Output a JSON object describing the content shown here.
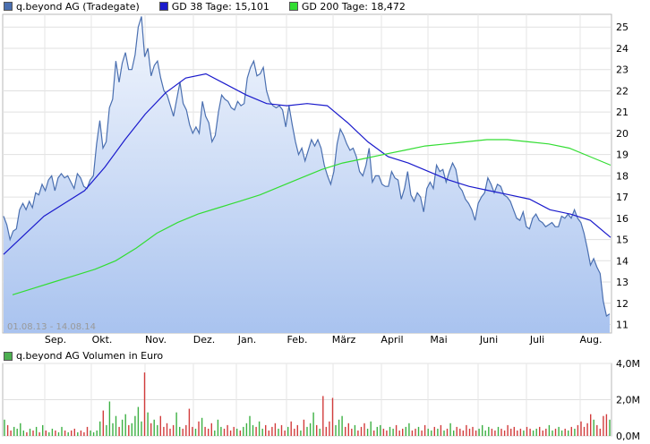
{
  "legend": {
    "price": {
      "label": "q.beyond AG (Tradegate)",
      "color": "#4a6fb0"
    },
    "gd38": {
      "label": "GD 38 Tage: 15,101",
      "color": "#1a1acc"
    },
    "gd200": {
      "label": "GD 200 Tage: 18,472",
      "color": "#33dd33"
    }
  },
  "volume_title": "q.beyond AG Volumen in Euro",
  "date_range": "01.08.13 - 14.08.14",
  "chart_data": [
    {
      "type": "line",
      "title": "",
      "x_start": "01.08.13",
      "x_end": "14.08.14",
      "x_tick_labels": [
        "Sep.",
        "Okt.",
        "Nov.",
        "Dez.",
        "Jan.",
        "Feb.",
        "März",
        "April",
        "Mai",
        "Juni",
        "Juli",
        "Aug."
      ],
      "y_tick_labels": [
        "11",
        "12",
        "13",
        "14",
        "15",
        "16",
        "17",
        "18",
        "19",
        "20",
        "21",
        "22",
        "23",
        "24",
        "25"
      ],
      "ylim": [
        10.6,
        25.6
      ],
      "grid": true,
      "legend_position": "top",
      "series": [
        {
          "name": "q.beyond AG (Tradegate)",
          "color": "#4a6fb0",
          "fill": "area-gradient",
          "values": [
            16.1,
            15.7,
            15.0,
            15.4,
            15.5,
            16.4,
            16.7,
            16.4,
            16.8,
            16.5,
            17.2,
            17.1,
            17.6,
            17.3,
            17.8,
            18.0,
            17.3,
            17.9,
            18.1,
            17.9,
            18.0,
            17.7,
            17.4,
            18.1,
            17.9,
            17.5,
            17.4,
            17.8,
            18.0,
            19.5,
            20.6,
            19.3,
            19.6,
            21.2,
            21.6,
            23.4,
            22.4,
            23.3,
            23.8,
            23.0,
            23.0,
            23.7,
            25.0,
            25.5,
            23.6,
            24.0,
            22.7,
            23.2,
            23.4,
            22.6,
            22.0,
            21.8,
            21.3,
            20.8,
            21.6,
            22.4,
            21.4,
            21.1,
            20.4,
            20.0,
            20.3,
            20.0,
            21.5,
            20.8,
            20.5,
            19.6,
            19.9,
            21.0,
            21.8,
            21.6,
            21.5,
            21.2,
            21.1,
            21.5,
            21.3,
            21.4,
            22.6,
            23.1,
            23.4,
            22.7,
            22.8,
            23.1,
            22.0,
            21.5,
            21.3,
            21.2,
            21.3,
            21.1,
            20.3,
            21.3,
            20.4,
            19.6,
            19.0,
            19.3,
            18.7,
            19.2,
            19.7,
            19.4,
            19.7,
            19.3,
            18.5,
            18.0,
            17.6,
            18.2,
            19.5,
            20.2,
            19.9,
            19.5,
            19.2,
            19.3,
            18.9,
            18.2,
            18.0,
            18.5,
            19.3,
            17.7,
            18.0,
            18.0,
            17.6,
            17.5,
            17.5,
            18.2,
            17.9,
            17.8,
            16.9,
            17.4,
            18.2,
            17.1,
            16.8,
            17.2,
            17.0,
            16.3,
            17.4,
            17.7,
            17.4,
            18.5,
            18.2,
            18.3,
            17.7,
            18.2,
            18.6,
            18.3,
            17.5,
            17.3,
            16.9,
            16.7,
            16.4,
            15.9,
            16.7,
            17.0,
            17.2,
            17.9,
            17.6,
            17.2,
            17.6,
            17.5,
            17.1,
            17.0,
            16.8,
            16.4,
            16.0,
            15.9,
            16.3,
            15.6,
            15.5,
            16.0,
            16.2,
            15.9,
            15.8,
            15.6,
            15.7,
            15.8,
            15.6,
            15.6,
            16.1,
            16.0,
            16.2,
            16.0,
            16.4,
            16.0,
            15.8,
            15.3,
            14.6,
            13.8,
            14.1,
            13.7,
            13.4,
            12.1,
            11.4,
            11.5
          ]
        },
        {
          "name": "GD 38 Tage: 15,101",
          "color": "#1a1acc",
          "values": [
            14.3,
            15.2,
            16.1,
            16.7,
            17.3,
            18.4,
            19.7,
            20.9,
            21.9,
            22.6,
            22.8,
            22.3,
            21.8,
            21.4,
            21.3,
            21.4,
            21.3,
            20.5,
            19.6,
            18.9,
            18.6,
            18.2,
            17.8,
            17.5,
            17.3,
            17.1,
            16.9,
            16.4,
            16.2,
            15.9,
            15.1
          ]
        },
        {
          "name": "GD 200 Tage: 18,472",
          "color": "#33dd33",
          "values": [
            12.4,
            12.7,
            13.0,
            13.3,
            13.6,
            14.0,
            14.6,
            15.3,
            15.8,
            16.2,
            16.5,
            16.8,
            17.1,
            17.5,
            17.9,
            18.3,
            18.6,
            18.8,
            19.0,
            19.2,
            19.4,
            19.5,
            19.6,
            19.7,
            19.7,
            19.6,
            19.5,
            19.3,
            18.9,
            18.5
          ]
        }
      ]
    },
    {
      "type": "bar",
      "title": "q.beyond AG Volumen in Euro",
      "y_tick_labels": [
        "0,0M",
        "2,0M",
        "4,0M"
      ],
      "ylim": [
        0,
        4.0
      ],
      "unit": "M Euro",
      "values": [
        0.9,
        0.6,
        0.3,
        0.5,
        0.4,
        0.7,
        0.3,
        0.2,
        0.4,
        0.3,
        0.5,
        0.2,
        0.6,
        0.3,
        0.2,
        0.4,
        0.3,
        0.2,
        0.5,
        0.3,
        0.2,
        0.3,
        0.4,
        0.2,
        0.3,
        0.2,
        0.5,
        0.3,
        0.2,
        0.3,
        0.8,
        1.4,
        0.6,
        1.9,
        0.7,
        1.1,
        0.5,
        0.9,
        1.2,
        0.6,
        0.7,
        1.1,
        1.6,
        0.8,
        3.5,
        1.3,
        0.7,
        0.9,
        0.6,
        1.1,
        0.5,
        0.7,
        0.4,
        0.6,
        1.3,
        0.5,
        0.4,
        0.6,
        1.5,
        0.5,
        0.4,
        0.8,
        1.0,
        0.5,
        0.4,
        0.7,
        0.3,
        0.9,
        0.5,
        0.4,
        0.6,
        0.3,
        0.5,
        0.4,
        0.3,
        0.5,
        0.7,
        1.1,
        0.6,
        0.5,
        0.8,
        0.4,
        0.6,
        0.3,
        0.5,
        0.7,
        0.4,
        0.6,
        0.3,
        0.5,
        0.8,
        0.4,
        0.6,
        0.3,
        0.9,
        0.5,
        0.7,
        1.3,
        0.6,
        0.4,
        2.2,
        0.5,
        0.8,
        2.1,
        0.6,
        0.9,
        1.1,
        0.5,
        0.7,
        0.4,
        0.6,
        0.3,
        0.5,
        0.7,
        0.4,
        0.8,
        0.3,
        0.5,
        0.6,
        0.4,
        0.3,
        0.5,
        0.4,
        0.6,
        0.3,
        0.4,
        0.5,
        0.7,
        0.3,
        0.4,
        0.5,
        0.3,
        0.6,
        0.4,
        0.3,
        0.5,
        0.4,
        0.6,
        0.3,
        0.4,
        0.7,
        0.3,
        0.5,
        0.4,
        0.3,
        0.6,
        0.4,
        0.5,
        0.3,
        0.4,
        0.6,
        0.3,
        0.5,
        0.4,
        0.3,
        0.5,
        0.4,
        0.3,
        0.6,
        0.4,
        0.5,
        0.3,
        0.4,
        0.3,
        0.5,
        0.4,
        0.3,
        0.4,
        0.5,
        0.3,
        0.4,
        0.6,
        0.3,
        0.4,
        0.5,
        0.3,
        0.4,
        0.3,
        0.5,
        0.4,
        0.6,
        0.8,
        0.5,
        0.7,
        1.2,
        0.9,
        0.6,
        0.4,
        1.1,
        1.2,
        0.9
      ]
    }
  ]
}
